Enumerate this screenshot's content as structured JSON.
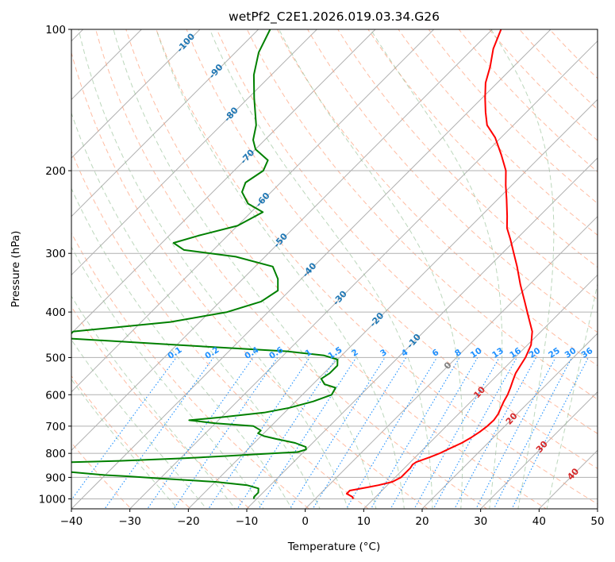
{
  "chart_data": {
    "type": "line",
    "subtype": "skew-t log-p diagram",
    "title": "wetPf2_C2E1.2026.019.03.34.G26",
    "xlabel": "Temperature (°C)",
    "ylabel": "Pressure (hPa)",
    "xlim": [
      -40,
      50
    ],
    "ylim": [
      1050,
      100
    ],
    "y_scale": "log",
    "grid": true,
    "x_ticks": [
      "−40",
      "−30",
      "−20",
      "−10",
      "0",
      "10",
      "20",
      "30",
      "40",
      "50"
    ],
    "x_tick_values": [
      -40,
      -30,
      -20,
      -10,
      0,
      10,
      20,
      30,
      40,
      50
    ],
    "y_ticks": [
      "100",
      "200",
      "300",
      "400",
      "500",
      "600",
      "700",
      "800",
      "900",
      "1000"
    ],
    "y_tick_values": [
      100,
      200,
      300,
      400,
      500,
      600,
      700,
      800,
      900,
      1000
    ],
    "colors": {
      "temperature": "#ff0000",
      "dewpoint": "#008000",
      "isotherm": "#b0b0b0",
      "dry_adiabat": "#ffa07a",
      "moist_adiabat": "#8fbc8f",
      "mixing_ratio": "#1e90ff",
      "label_blue": "#1f77b4",
      "label_red": "#d62728",
      "label_gray": "#808080"
    },
    "series": [
      {
        "key": "temperature",
        "points": [
          [
            1000,
            6.5
          ],
          [
            990,
            6.0
          ],
          [
            975,
            4.5
          ],
          [
            960,
            4.5
          ],
          [
            945,
            7.0
          ],
          [
            935,
            8.5
          ],
          [
            920,
            10.3
          ],
          [
            900,
            11.0
          ],
          [
            880,
            11.0
          ],
          [
            860,
            11.0
          ],
          [
            845,
            10.8
          ],
          [
            835,
            11.0
          ],
          [
            815,
            12.5
          ],
          [
            800,
            13.5
          ],
          [
            785,
            14.2
          ],
          [
            760,
            15.5
          ],
          [
            740,
            16.2
          ],
          [
            720,
            16.7
          ],
          [
            700,
            17.0
          ],
          [
            680,
            17.1
          ],
          [
            660,
            16.8
          ],
          [
            640,
            16.2
          ],
          [
            620,
            15.6
          ],
          [
            600,
            15.1
          ],
          [
            580,
            14.4
          ],
          [
            560,
            13.6
          ],
          [
            540,
            12.8
          ],
          [
            520,
            12.3
          ],
          [
            500,
            11.8
          ],
          [
            470,
            10.6
          ],
          [
            440,
            8.5
          ],
          [
            410,
            5.4
          ],
          [
            380,
            2.1
          ],
          [
            350,
            -1.5
          ],
          [
            320,
            -5.2
          ],
          [
            300,
            -8.0
          ],
          [
            280,
            -11.0
          ],
          [
            265,
            -13.5
          ],
          [
            250,
            -15.5
          ],
          [
            230,
            -18.5
          ],
          [
            215,
            -21.0
          ],
          [
            200,
            -23.5
          ],
          [
            185,
            -27.0
          ],
          [
            170,
            -31.0
          ],
          [
            160,
            -34.5
          ],
          [
            150,
            -37.0
          ],
          [
            140,
            -39.5
          ],
          [
            130,
            -42.0
          ],
          [
            120,
            -44.0
          ],
          [
            110,
            -46.5
          ],
          [
            100,
            -48.5
          ]
        ]
      },
      {
        "key": "dewpoint",
        "points": [
          [
            1000,
            -10.5
          ],
          [
            990,
            -10.8
          ],
          [
            970,
            -10.8
          ],
          [
            950,
            -11.5
          ],
          [
            935,
            -14.0
          ],
          [
            920,
            -20.0
          ],
          [
            905,
            -30.0
          ],
          [
            895,
            -36.0
          ],
          [
            890,
            -40.0
          ],
          [
            850,
            -60.0
          ],
          [
            840,
            -55.0
          ],
          [
            830,
            -40.0
          ],
          [
            820,
            -30.0
          ],
          [
            810,
            -22.0
          ],
          [
            800,
            -15.0
          ],
          [
            795,
            -11.0
          ],
          [
            785,
            -10.0
          ],
          [
            775,
            -10.5
          ],
          [
            760,
            -13.0
          ],
          [
            745,
            -17.0
          ],
          [
            735,
            -19.5
          ],
          [
            725,
            -21.0
          ],
          [
            715,
            -21.0
          ],
          [
            700,
            -23.0
          ],
          [
            690,
            -30.0
          ],
          [
            680,
            -35.0
          ],
          [
            670,
            -30.0
          ],
          [
            655,
            -23.5
          ],
          [
            640,
            -20.0
          ],
          [
            620,
            -17.0
          ],
          [
            600,
            -15.0
          ],
          [
            580,
            -15.5
          ],
          [
            570,
            -18.0
          ],
          [
            555,
            -19.5
          ],
          [
            540,
            -19.0
          ],
          [
            520,
            -19.0
          ],
          [
            505,
            -20.0
          ],
          [
            495,
            -23.0
          ],
          [
            485,
            -30.0
          ],
          [
            470,
            -50.0
          ],
          [
            455,
            -70.0
          ],
          [
            440,
            -70.0
          ],
          [
            420,
            -55.0
          ],
          [
            400,
            -47.0
          ],
          [
            380,
            -43.0
          ],
          [
            360,
            -42.0
          ],
          [
            340,
            -44.0
          ],
          [
            320,
            -47.0
          ],
          [
            305,
            -55.0
          ],
          [
            295,
            -65.0
          ],
          [
            285,
            -68.0
          ],
          [
            275,
            -65.0
          ],
          [
            262,
            -60.0
          ],
          [
            245,
            -58.0
          ],
          [
            235,
            -62.0
          ],
          [
            222,
            -65.0
          ],
          [
            212,
            -66.0
          ],
          [
            200,
            -65.0
          ],
          [
            190,
            -66.0
          ],
          [
            180,
            -70.0
          ],
          [
            172,
            -72.0
          ],
          [
            160,
            -74.0
          ],
          [
            140,
            -79.0
          ],
          [
            125,
            -83.0
          ],
          [
            112,
            -86.0
          ],
          [
            100,
            -88.0
          ]
        ]
      }
    ],
    "guide_lines": {
      "dry_adiabats_k": [
        230,
        240,
        250,
        260,
        270,
        280,
        290,
        300,
        310,
        320,
        330,
        340,
        350,
        360,
        370,
        380,
        390,
        400,
        410,
        420,
        430,
        440,
        450
      ],
      "moist_adiabats_c": [
        -25,
        -20,
        -15,
        -10,
        -5,
        0,
        5,
        10,
        15,
        20,
        25,
        30,
        35,
        40
      ],
      "isotherm_start": -200,
      "isotherm_stop": 50,
      "isotherm_step": 10
    },
    "mixing_ratio_labels": [
      "0.1",
      "0.2",
      "0.4",
      "0.6",
      "1",
      "1.5",
      "2",
      "3",
      "4",
      "6",
      "8",
      "10",
      "13",
      "16",
      "20",
      "25",
      "30",
      "36"
    ],
    "mixing_ratio_values": [
      0.1,
      0.2,
      0.4,
      0.6,
      1,
      1.5,
      2,
      3,
      4,
      6,
      8,
      10,
      13,
      16,
      20,
      25,
      30,
      36
    ],
    "isotherm_labels": [
      {
        "text": "-100",
        "value": -100,
        "pressure": 107
      },
      {
        "text": "-90",
        "value": -90,
        "pressure": 123
      },
      {
        "text": "-80",
        "value": -80,
        "pressure": 152
      },
      {
        "text": "-70",
        "value": -70,
        "pressure": 187
      },
      {
        "text": "-60",
        "value": -60,
        "pressure": 231
      },
      {
        "text": "-50",
        "value": -50,
        "pressure": 282
      },
      {
        "text": "-40",
        "value": -40,
        "pressure": 326
      },
      {
        "text": "-30",
        "value": -30,
        "pressure": 374
      },
      {
        "text": "-20",
        "value": -20,
        "pressure": 416
      },
      {
        "text": "-10",
        "value": -10,
        "pressure": 462
      },
      {
        "text": "0",
        "value": 0,
        "pressure": 521
      },
      {
        "text": "10",
        "value": 10,
        "pressure": 594
      },
      {
        "text": "20",
        "value": 20,
        "pressure": 676
      },
      {
        "text": "30",
        "value": 30,
        "pressure": 776
      },
      {
        "text": "40",
        "value": 40,
        "pressure": 887
      }
    ]
  }
}
